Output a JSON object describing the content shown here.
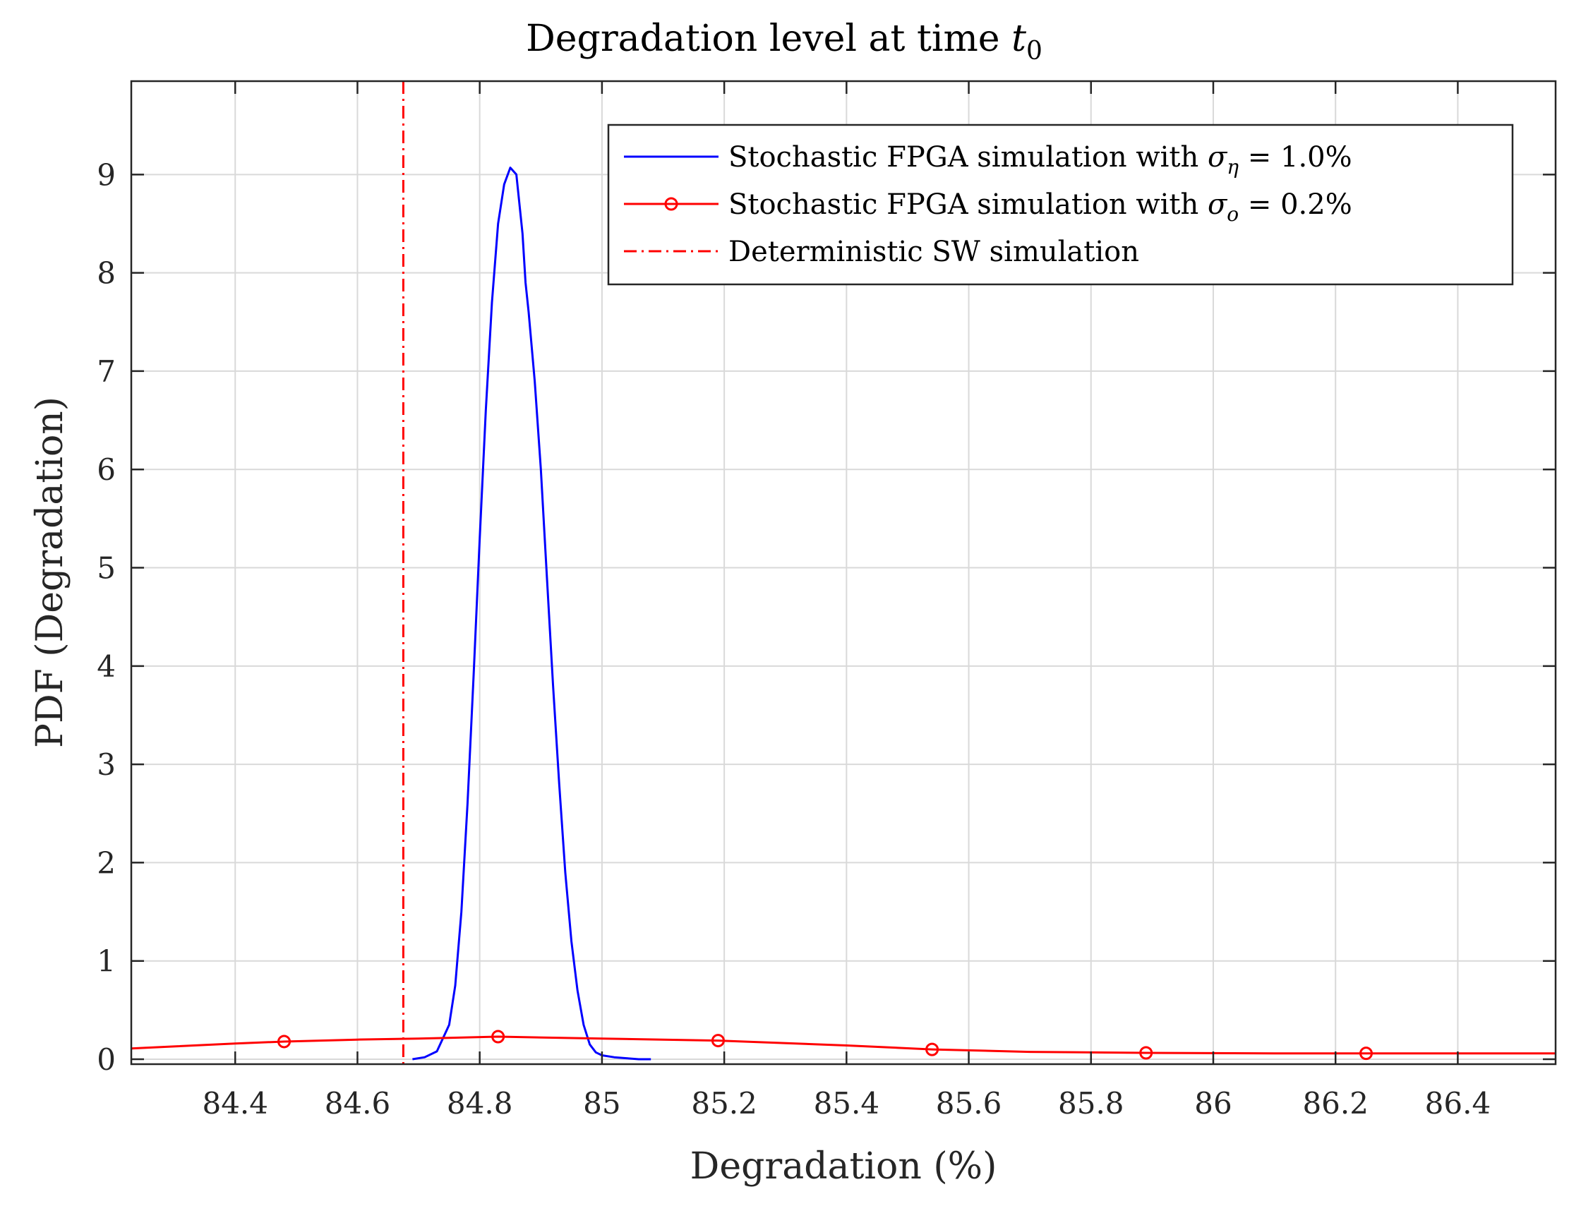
{
  "chart_data": {
    "type": "line",
    "title": "Degradation level at time",
    "title_subscript_symbol": "t",
    "title_subscript": "0",
    "xlabel": "Degradation (%)",
    "ylabel": "PDF (Degradation)",
    "xlim": [
      84.23,
      86.56
    ],
    "ylim": [
      -0.05,
      9.95
    ],
    "grid": true,
    "legend_position": "top-right",
    "x_ticks": [
      {
        "value": 84.4,
        "label": "84.4"
      },
      {
        "value": 84.6,
        "label": "84.6"
      },
      {
        "value": 84.8,
        "label": "84.8"
      },
      {
        "value": 85.0,
        "label": "85"
      },
      {
        "value": 85.2,
        "label": "85.2"
      },
      {
        "value": 85.4,
        "label": "85.4"
      },
      {
        "value": 85.6,
        "label": "85.6"
      },
      {
        "value": 85.8,
        "label": "85.8"
      },
      {
        "value": 86.0,
        "label": "86"
      },
      {
        "value": 86.2,
        "label": "86.2"
      },
      {
        "value": 86.4,
        "label": "86.4"
      }
    ],
    "y_ticks": [
      {
        "value": 0,
        "label": "0"
      },
      {
        "value": 1,
        "label": "1"
      },
      {
        "value": 2,
        "label": "2"
      },
      {
        "value": 3,
        "label": "3"
      },
      {
        "value": 4,
        "label": "4"
      },
      {
        "value": 5,
        "label": "5"
      },
      {
        "value": 6,
        "label": "6"
      },
      {
        "value": 7,
        "label": "7"
      },
      {
        "value": 8,
        "label": "8"
      },
      {
        "value": 9,
        "label": "9"
      }
    ],
    "series": [
      {
        "name": "Stochastic FPGA simulation with σ_η = 1.0%",
        "legend_prefix": "Stochastic FPGA simulation with ",
        "legend_symbol": "σ",
        "legend_sub": "η",
        "legend_suffix": " = 1.0%",
        "color": "#0000ff",
        "style": "solid",
        "marker": "none",
        "x": [
          84.69,
          84.71,
          84.73,
          84.75,
          84.76,
          84.77,
          84.78,
          84.79,
          84.8,
          84.81,
          84.82,
          84.83,
          84.84,
          84.85,
          84.86,
          84.87,
          84.875,
          84.88,
          84.89,
          84.9,
          84.91,
          84.92,
          84.93,
          84.94,
          84.95,
          84.96,
          84.97,
          84.98,
          84.99,
          85.0,
          85.02,
          85.04,
          85.06,
          85.08
        ],
        "y": [
          0.0,
          0.02,
          0.08,
          0.35,
          0.75,
          1.5,
          2.6,
          3.9,
          5.3,
          6.6,
          7.7,
          8.5,
          8.9,
          9.07,
          9.0,
          8.4,
          7.9,
          7.6,
          6.9,
          6.0,
          4.9,
          3.8,
          2.8,
          1.9,
          1.2,
          0.7,
          0.35,
          0.15,
          0.07,
          0.04,
          0.02,
          0.01,
          0.0,
          0.0
        ]
      },
      {
        "name": "Stochastic FPGA simulation with σ_o = 0.2%",
        "legend_prefix": "Stochastic FPGA simulation with ",
        "legend_symbol": "σ",
        "legend_sub": "o",
        "legend_suffix": " = 0.2%",
        "color": "#ff0000",
        "style": "solid",
        "marker": "circle",
        "x": [
          84.23,
          84.3,
          84.4,
          84.48,
          84.6,
          84.7,
          84.83,
          85.0,
          85.19,
          85.4,
          85.54,
          85.7,
          85.89,
          86.1,
          86.25,
          86.4,
          86.56
        ],
        "y": [
          0.11,
          0.13,
          0.16,
          0.18,
          0.2,
          0.21,
          0.23,
          0.21,
          0.19,
          0.14,
          0.1,
          0.075,
          0.065,
          0.06,
          0.06,
          0.06,
          0.06
        ],
        "marker_x": [
          84.48,
          84.83,
          85.19,
          85.54,
          85.89,
          86.25
        ],
        "marker_y": [
          0.18,
          0.23,
          0.19,
          0.1,
          0.065,
          0.06
        ]
      },
      {
        "name": "Deterministic SW simulation",
        "legend_prefix": "Deterministic SW simulation",
        "legend_symbol": "",
        "legend_sub": "",
        "legend_suffix": "",
        "color": "#ff0000",
        "style": "dash-dot",
        "marker": "none",
        "vertical_x": 84.675
      }
    ]
  }
}
